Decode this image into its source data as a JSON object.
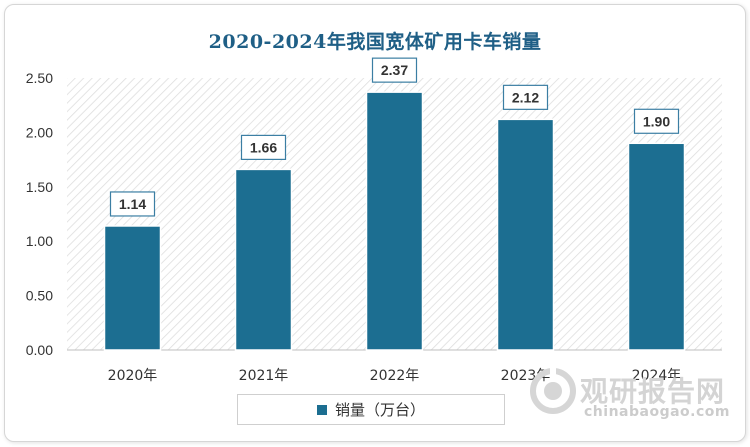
{
  "chart_data": {
    "type": "bar",
    "title": "2020-2024年我国宽体矿用卡车销量",
    "categories": [
      "2020年",
      "2021年",
      "2022年",
      "2023年",
      "2024年"
    ],
    "series": [
      {
        "name": "销量（万台）",
        "values": [
          1.14,
          1.66,
          2.37,
          2.12,
          1.9
        ]
      }
    ],
    "data_labels": [
      "1.14",
      "1.66",
      "2.37",
      "2.12",
      "1.90"
    ],
    "yticks": [
      "0.00",
      "0.50",
      "1.00",
      "1.50",
      "2.00",
      "2.50"
    ],
    "ylim": [
      0,
      2.5
    ],
    "xlabel": "",
    "ylabel": "",
    "legend_position": "bottom",
    "grid": false,
    "bar_color": "#1c6e91",
    "title_color": "#1f5f86"
  },
  "watermark": {
    "name": "观研报告网",
    "url": "chinabaogao.com"
  }
}
